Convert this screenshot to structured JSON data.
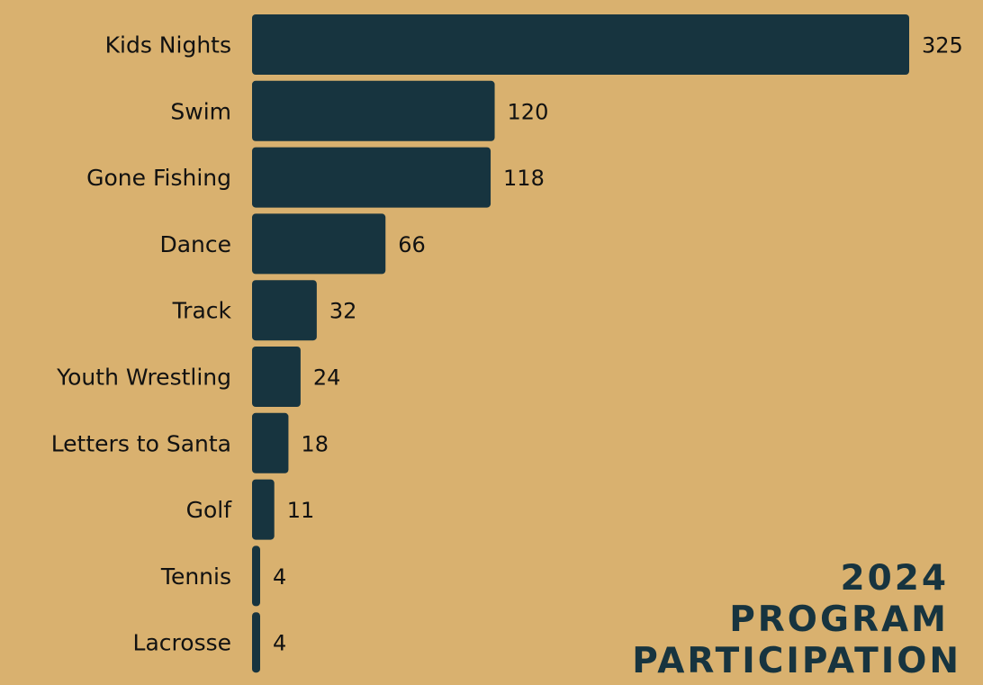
{
  "title": {
    "lines": [
      "2024",
      "PROGRAM",
      "PARTICIPATION"
    ]
  },
  "colors": {
    "background": "#d9b16f",
    "bar": "#17343f",
    "title": "#17343f",
    "text": "#111111"
  },
  "chart_data": {
    "type": "bar",
    "orientation": "horizontal",
    "title": "2024 PROGRAM PARTICIPATION",
    "categories": [
      "Kids Nights",
      "Swim",
      "Gone Fishing",
      "Dance",
      "Track",
      "Youth Wrestling",
      "Letters to Santa",
      "Golf",
      "Tennis",
      "Lacrosse"
    ],
    "values": [
      325,
      120,
      118,
      66,
      32,
      24,
      18,
      11,
      4,
      4
    ],
    "xlim": [
      0,
      325
    ],
    "grid": false,
    "legend": "none",
    "data_labels": true
  }
}
